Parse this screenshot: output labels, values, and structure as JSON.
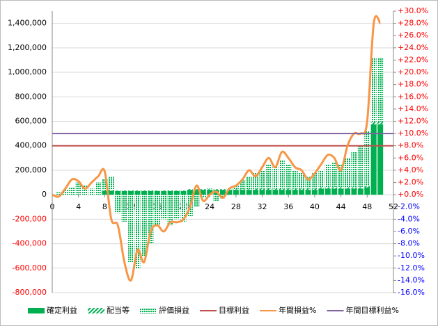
{
  "chart_data": {
    "type": "bar-line",
    "legend": "bottom",
    "grid": true,
    "xlim": [
      0,
      52
    ],
    "xticks": [
      0,
      4,
      8,
      12,
      16,
      20,
      24,
      28,
      32,
      36,
      40,
      44,
      48,
      52
    ],
    "ylim": [
      -800000,
      1500000
    ],
    "yticks": [
      {
        "value": -800000,
        "label": "-800,000"
      },
      {
        "value": -600000,
        "label": "-600,000"
      },
      {
        "value": -400000,
        "label": "-400,000"
      },
      {
        "value": -200000,
        "label": "-200,000"
      },
      0,
      {
        "value": 200000,
        "label": "200,000"
      },
      {
        "value": 400000,
        "label": "400,000"
      },
      {
        "value": 600000,
        "label": "600,000"
      },
      {
        "value": 800000,
        "label": "800,000"
      },
      {
        "value": 1000000,
        "label": "1,000,000"
      },
      {
        "value": 1200000,
        "label": "1,200,000"
      },
      {
        "value": 1400000,
        "label": "1,400,000"
      }
    ],
    "ytick_negative_color": "#ff0000",
    "y2lim": [
      -16,
      30
    ],
    "y2ticks": [
      {
        "value": -16,
        "label": "-16.0%"
      },
      {
        "value": -14,
        "label": "-14.0%"
      },
      {
        "value": -12,
        "label": "-12.0%"
      },
      {
        "value": -10,
        "label": "-10.0%"
      },
      {
        "value": -8,
        "label": "-8.0%"
      },
      {
        "value": -6,
        "label": "-6.0%"
      },
      {
        "value": -4,
        "label": "-4.0%"
      },
      {
        "value": -2,
        "label": "-2.0%"
      },
      {
        "value": 0,
        "label": "+0.0%"
      },
      {
        "value": 2,
        "label": "+2.0%"
      },
      {
        "value": 4,
        "label": "+4.0%"
      },
      {
        "value": 6,
        "label": "+6.0%"
      },
      {
        "value": 8,
        "label": "+8.0%"
      },
      {
        "value": 10,
        "label": "+10.0%"
      },
      {
        "value": 12,
        "label": "+12.0%"
      },
      {
        "value": 14,
        "label": "+14.0%"
      },
      {
        "value": 16,
        "label": "+16.0%"
      },
      {
        "value": 18,
        "label": "+18.0%"
      },
      {
        "value": 20,
        "label": "+20.0%"
      },
      {
        "value": 22,
        "label": "+22.0%"
      },
      {
        "value": 24,
        "label": "+24.0%"
      },
      {
        "value": 26,
        "label": "+26.0%"
      },
      {
        "value": 28,
        "label": "+28.0%"
      },
      {
        "value": 30,
        "label": "+30.0%"
      }
    ],
    "y2tick_colors": {
      "positive": "#ff0000",
      "negative": "#0000ff"
    },
    "bar_x": [
      1,
      2,
      3,
      4,
      5,
      6,
      7,
      8,
      9,
      10,
      11,
      12,
      13,
      14,
      15,
      16,
      17,
      18,
      19,
      20,
      21,
      22,
      23,
      24,
      25,
      26,
      27,
      28,
      29,
      30,
      31,
      32,
      33,
      34,
      35,
      36,
      37,
      38,
      39,
      40,
      41,
      42,
      43,
      44,
      45,
      46,
      47,
      48,
      49,
      50
    ],
    "bar_series": [
      {
        "name": "確定利益",
        "color": "#00b050",
        "style": "solid",
        "values": [
          0,
          0,
          0,
          0,
          0,
          0,
          0,
          30000,
          30000,
          30000,
          30000,
          30000,
          30000,
          30000,
          30000,
          30000,
          30000,
          30000,
          30000,
          30000,
          40000,
          40000,
          40000,
          40000,
          40000,
          40000,
          40000,
          40000,
          40000,
          40000,
          40000,
          40000,
          40000,
          40000,
          40000,
          40000,
          40000,
          40000,
          40000,
          40000,
          50000,
          50000,
          50000,
          50000,
          50000,
          50000,
          50000,
          60000,
          575000,
          575000
        ]
      },
      {
        "name": "配当等",
        "color": "#00b050",
        "style": "hatch",
        "values": [
          0,
          0,
          0,
          0,
          0,
          0,
          0,
          5000,
          5000,
          5000,
          5000,
          5000,
          5000,
          5000,
          5000,
          5000,
          5000,
          5000,
          5000,
          5000,
          5000,
          5000,
          5000,
          5000,
          5000,
          5000,
          5000,
          5000,
          5000,
          5000,
          10000,
          10000,
          10000,
          10000,
          10000,
          10000,
          10000,
          10000,
          10000,
          10000,
          10000,
          10000,
          10000,
          10000,
          10000,
          10000,
          10000,
          10000,
          20000,
          20000
        ]
      },
      {
        "name": "評価損益",
        "color": "#00b050",
        "style": "dots",
        "values": [
          20000,
          40000,
          60000,
          100000,
          80000,
          50000,
          100000,
          95000,
          115000,
          -150000,
          -220000,
          -550000,
          -600000,
          -500000,
          -400000,
          -250000,
          -200000,
          -250000,
          -200000,
          -220000,
          -180000,
          -100000,
          -20000,
          5000,
          -50000,
          -30000,
          5000,
          35000,
          75000,
          105000,
          130000,
          150000,
          200000,
          180000,
          230000,
          200000,
          150000,
          130000,
          100000,
          130000,
          140000,
          190000,
          200000,
          190000,
          240000,
          290000,
          340000,
          450000,
          525000,
          525000
        ]
      }
    ],
    "line_series": [
      {
        "name": "目標利益",
        "color": "#c0504d",
        "x": [
          0,
          52
        ],
        "values": [
          400000,
          400000
        ]
      },
      {
        "name": "年間損益%",
        "color": "#f79646",
        "axis": "y2",
        "smooth": true,
        "x": [
          0,
          1,
          2,
          3,
          4,
          5,
          6,
          7,
          8,
          9,
          10,
          11,
          12,
          13,
          14,
          15,
          16,
          17,
          18,
          19,
          20,
          21,
          22,
          23,
          24,
          25,
          26,
          27,
          28,
          29,
          30,
          31,
          32,
          33,
          34,
          35,
          36,
          37,
          38,
          39,
          40,
          41,
          42,
          43,
          44,
          45,
          46,
          47,
          48,
          49,
          50
        ],
        "values": [
          0,
          -0.3,
          1,
          2.5,
          2.2,
          1,
          2,
          3,
          3.8,
          -4,
          -5,
          -11,
          -14,
          -9,
          -11,
          -6,
          -5,
          -6,
          -4.5,
          -4.5,
          -4,
          -2,
          1.5,
          -1,
          0,
          0.5,
          -0.5,
          1,
          1.5,
          2.5,
          4,
          3,
          4.5,
          6,
          4.5,
          7,
          6,
          4.5,
          4,
          2.5,
          3.5,
          5,
          6.5,
          6,
          4,
          8,
          10,
          10,
          12,
          28,
          28
        ]
      },
      {
        "name": "年間目標利益%",
        "color": "#8064a2",
        "axis": "y2",
        "x": [
          0,
          52
        ],
        "values": [
          10,
          10
        ]
      }
    ]
  }
}
